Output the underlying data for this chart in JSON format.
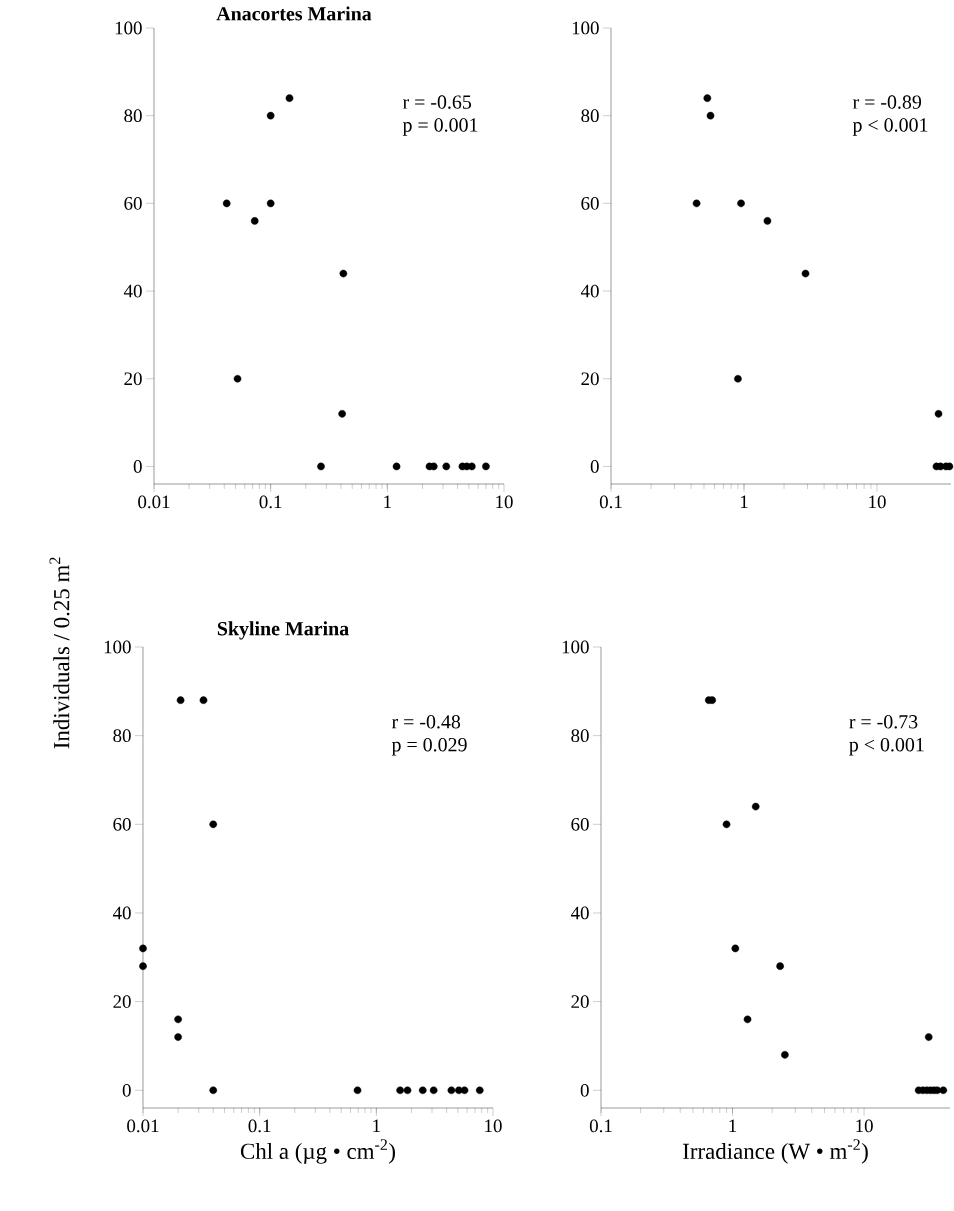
{
  "chart_data": [
    {
      "type": "scatter",
      "title": "Anacortes Marina",
      "ylabel": "Individuals / 0.25 m$^{2}$",
      "log": "x",
      "marker": "circle",
      "xlim": [
        0.01,
        10
      ],
      "ylim": [
        -4,
        100
      ],
      "xticks": [
        0.01,
        0.1,
        1,
        10
      ],
      "yticks": [
        0,
        20,
        40,
        60,
        80,
        100
      ],
      "annotations": [
        "r = -0.65",
        "p = 0.001"
      ],
      "series": [
        {
          "color": "#000000",
          "x": [
            0.042,
            0.052,
            0.073,
            0.1,
            0.1,
            0.145,
            0.27,
            0.42,
            0.41,
            1.2,
            2.3,
            2.5,
            3.2,
            4.4,
            4.8,
            5.3,
            7.0
          ],
          "values": [
            60,
            20,
            56,
            80,
            60,
            84,
            0,
            44,
            12,
            0,
            0,
            0,
            0,
            0,
            0,
            0,
            0
          ]
        }
      ]
    },
    {
      "type": "scatter",
      "log": "x",
      "marker": "circle",
      "xlim": [
        0.1,
        36
      ],
      "ylim": [
        -4,
        100
      ],
      "xticks": [
        0.1,
        1,
        10
      ],
      "yticks": [
        0,
        20,
        40,
        60,
        80,
        100
      ],
      "annotations": [
        "r = -0.89",
        "p < 0.001"
      ],
      "series": [
        {
          "color": "#000000",
          "x": [
            0.44,
            0.53,
            0.56,
            0.95,
            0.9,
            1.5,
            2.9,
            29,
            28,
            30,
            33,
            35
          ],
          "values": [
            60,
            84,
            80,
            60,
            20,
            56,
            44,
            12,
            0,
            0,
            0,
            0
          ]
        }
      ]
    },
    {
      "type": "scatter",
      "title": "Skyline Marina",
      "xlabel": "Chl a (µg • cm$^{-2}$)",
      "log": "x",
      "marker": "circle",
      "xlim": [
        0.01,
        10
      ],
      "ylim": [
        -4,
        100
      ],
      "xticks": [
        0.01,
        0.1,
        1,
        10
      ],
      "yticks": [
        0,
        20,
        40,
        60,
        80,
        100
      ],
      "annotations": [
        "r = -0.48",
        "p = 0.029"
      ],
      "series": [
        {
          "color": "#000000",
          "x": [
            0.01,
            0.01,
            0.02,
            0.02,
            0.021,
            0.033,
            0.04,
            0.04,
            0.69,
            1.6,
            1.85,
            2.5,
            3.1,
            4.4,
            5.1,
            5.7,
            7.7
          ],
          "values": [
            32,
            28,
            16,
            12,
            88,
            88,
            60,
            0,
            0,
            0,
            0,
            0,
            0,
            0,
            0,
            0,
            0
          ]
        }
      ]
    },
    {
      "type": "scatter",
      "xlabel": "Irradiance (W • m$^{-2}$)",
      "log": "x",
      "marker": "circle",
      "xlim": [
        0.1,
        45
      ],
      "ylim": [
        -4,
        100
      ],
      "xticks": [
        0.1,
        1,
        10
      ],
      "yticks": [
        0,
        20,
        40,
        60,
        80,
        100
      ],
      "annotations": [
        "r = -0.73",
        "p < 0.001"
      ],
      "series": [
        {
          "color": "#000000",
          "x": [
            0.66,
            0.7,
            0.9,
            1.5,
            1.05,
            2.3,
            1.3,
            2.5,
            31,
            26,
            28,
            30,
            32,
            34,
            36,
            40
          ],
          "values": [
            88,
            88,
            60,
            64,
            32,
            28,
            16,
            8,
            12,
            0,
            0,
            0,
            0,
            0,
            0,
            0
          ]
        }
      ]
    }
  ]
}
